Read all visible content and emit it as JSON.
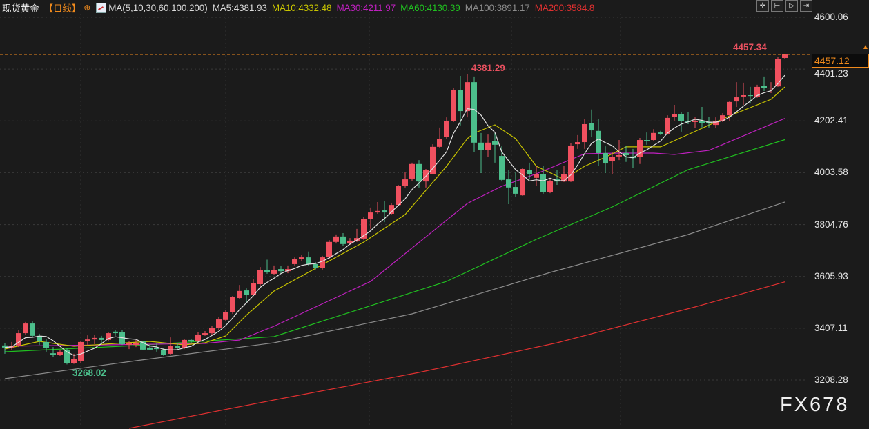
{
  "header": {
    "symbol": "现货黄金",
    "period": "【日线】",
    "ma_params": "MA(5,10,30,60,100,200)",
    "ma5": "MA5:4381.93",
    "ma10": "MA10:4332.48",
    "ma30": "MA30:4211.97",
    "ma60": "MA60:4130.39",
    "ma100": "MA100:3891.17",
    "ma200": "MA200:3584.8"
  },
  "toolbar": {
    "icons": [
      "crosshair-icon",
      "zoom-range-icon",
      "play-icon",
      "move-right-icon"
    ]
  },
  "watermark": "FX678",
  "colors": {
    "background": "#1b1b1b",
    "up": "#f0505f",
    "down": "#4cbf8c",
    "ma5": "#e0e0e0",
    "ma10": "#c8c400",
    "ma30": "#c020c0",
    "ma60": "#20c020",
    "ma100": "#8c8c8c",
    "ma200": "#e03030",
    "last_price": "#f08a1c"
  },
  "chart_data": {
    "type": "candlestick",
    "title": "现货黄金【日线】",
    "ylim": [
      3208.28,
      4600.06
    ],
    "y_ticks": [
      "4600.06",
      "4401.23",
      "4202.41",
      "4003.58",
      "3804.76",
      "3605.93",
      "3407.11",
      "3208.28"
    ],
    "grid": true,
    "last_price": "4457.12",
    "annotations": {
      "high": "4381.29",
      "low": "3268.02",
      "recent_high": "4457.34"
    },
    "candles_ohlc": [
      [
        3341,
        3349,
        3309,
        3333
      ],
      [
        3333,
        3354,
        3322,
        3338
      ],
      [
        3341,
        3399,
        3335,
        3388
      ],
      [
        3388,
        3431,
        3383,
        3425
      ],
      [
        3425,
        3433,
        3372,
        3378
      ],
      [
        3378,
        3386,
        3343,
        3356
      ],
      [
        3354,
        3364,
        3317,
        3330
      ],
      [
        3311,
        3335,
        3296,
        3306
      ],
      [
        3306,
        3322,
        3301,
        3317
      ],
      [
        3322,
        3330,
        3268.02,
        3274
      ],
      [
        3274,
        3309,
        3270,
        3290
      ],
      [
        3282,
        3359,
        3274,
        3354
      ],
      [
        3359,
        3380,
        3343,
        3364
      ],
      [
        3364,
        3383,
        3346,
        3370
      ],
      [
        3370,
        3378,
        3351,
        3362
      ],
      [
        3362,
        3391,
        3356,
        3388
      ],
      [
        3394,
        3401,
        3378,
        3388
      ],
      [
        3391,
        3399,
        3343,
        3346
      ],
      [
        3343,
        3359,
        3327,
        3349
      ],
      [
        3343,
        3362,
        3335,
        3351
      ],
      [
        3356,
        3359,
        3322,
        3325
      ],
      [
        3333,
        3341,
        3322,
        3325
      ],
      [
        3333,
        3349,
        3317,
        3327
      ],
      [
        3325,
        3330,
        3301,
        3304
      ],
      [
        3309,
        3372,
        3306,
        3338
      ],
      [
        3338,
        3349,
        3325,
        3330
      ],
      [
        3330,
        3367,
        3327,
        3362
      ],
      [
        3362,
        3367,
        3351,
        3356
      ],
      [
        3356,
        3391,
        3351,
        3383
      ],
      [
        3383,
        3396,
        3378,
        3388
      ],
      [
        3388,
        3417,
        3383,
        3407
      ],
      [
        3407,
        3449,
        3401,
        3441
      ],
      [
        3439,
        3478,
        3433,
        3468
      ],
      [
        3468,
        3531,
        3462,
        3526
      ],
      [
        3523,
        3573,
        3518,
        3550
      ],
      [
        3552,
        3560,
        3507,
        3536
      ],
      [
        3536,
        3595,
        3531,
        3579
      ],
      [
        3576,
        3642,
        3571,
        3629
      ],
      [
        3629,
        3670,
        3616,
        3621
      ],
      [
        3616,
        3648,
        3611,
        3629
      ],
      [
        3634,
        3645,
        3616,
        3626
      ],
      [
        3626,
        3648,
        3618,
        3634
      ],
      [
        3653,
        3679,
        3648,
        3672
      ],
      [
        3672,
        3690,
        3666,
        3679
      ],
      [
        3679,
        3701,
        3645,
        3653
      ],
      [
        3653,
        3661,
        3632,
        3637
      ],
      [
        3637,
        3685,
        3632,
        3679
      ],
      [
        3679,
        3745,
        3674,
        3738
      ],
      [
        3738,
        3767,
        3732,
        3759
      ],
      [
        3759,
        3772,
        3722,
        3730
      ],
      [
        3732,
        3753,
        3727,
        3743
      ],
      [
        3743,
        3788,
        3738,
        3753
      ],
      [
        3751,
        3833,
        3745,
        3827
      ],
      [
        3825,
        3870,
        3788,
        3851
      ],
      [
        3851,
        3891,
        3846,
        3857
      ],
      [
        3859,
        3894,
        3814,
        3851
      ],
      [
        3846,
        3888,
        3841,
        3880
      ],
      [
        3880,
        3957,
        3878,
        3952
      ],
      [
        3954,
        4005,
        3947,
        3978
      ],
      [
        3981,
        4042,
        3973,
        4037
      ],
      [
        4037,
        4052,
        3947,
        3970
      ],
      [
        3970,
        4018,
        3947,
        4013
      ],
      [
        3999,
        4113,
        3997,
        4103
      ],
      [
        4103,
        4177,
        4100,
        4134
      ],
      [
        4140,
        4216,
        4134,
        4201
      ],
      [
        4203,
        4330,
        4198,
        4320
      ],
      [
        4322,
        4375,
        4185,
        4240
      ],
      [
        4240,
        4381.29,
        4216,
        4351
      ],
      [
        4351,
        4373,
        4082,
        4119
      ],
      [
        4119,
        4156,
        4002,
        4092
      ],
      [
        4092,
        4150,
        4063,
        4119
      ],
      [
        4124,
        4156,
        4042,
        4111
      ],
      [
        4068,
        4105,
        3970,
        3976
      ],
      [
        3978,
        4015,
        3883,
        3947
      ],
      [
        3949,
        4007,
        3912,
        3923
      ],
      [
        3917,
        4021,
        3915,
        4018
      ],
      [
        4015,
        4042,
        3978,
        3997
      ],
      [
        3984,
        4029,
        3952,
        3997
      ],
      [
        3997,
        4031,
        3923,
        3928
      ],
      [
        3928,
        3978,
        3925,
        3973
      ],
      [
        3978,
        4013,
        3957,
        3970
      ],
      [
        3970,
        4031,
        3968,
        3997
      ],
      [
        3970,
        4116,
        3968,
        4108
      ],
      [
        4113,
        4148,
        4095,
        4121
      ],
      [
        4121,
        4211,
        4095,
        4190
      ],
      [
        4193,
        4246,
        4142,
        4166
      ],
      [
        4164,
        4209,
        4031,
        4079
      ],
      [
        4079,
        4105,
        4002,
        4039
      ],
      [
        4047,
        4084,
        3997,
        4063
      ],
      [
        4066,
        4129,
        4052,
        4071
      ],
      [
        4079,
        4108,
        4045,
        4071
      ],
      [
        4066,
        4095,
        4021,
        4060
      ],
      [
        4063,
        4137,
        4037,
        4129
      ],
      [
        4129,
        4158,
        4111,
        4126
      ],
      [
        4129,
        4171,
        4126,
        4156
      ],
      [
        4158,
        4164,
        4148,
        4153
      ],
      [
        4153,
        4224,
        4150,
        4214
      ],
      [
        4219,
        4264,
        4203,
        4227
      ],
      [
        4227,
        4235,
        4161,
        4201
      ],
      [
        4201,
        4235,
        4190,
        4198
      ],
      [
        4198,
        4216,
        4174,
        4203
      ],
      [
        4203,
        4256,
        4177,
        4193
      ],
      [
        4198,
        4219,
        4177,
        4193
      ],
      [
        4187,
        4216,
        4174,
        4201
      ],
      [
        4201,
        4232,
        4198,
        4224
      ],
      [
        4224,
        4280,
        4203,
        4275
      ],
      [
        4277,
        4351,
        4256,
        4293
      ],
      [
        4296,
        4349,
        4264,
        4301
      ],
      [
        4301,
        4333,
        4269,
        4298
      ],
      [
        4296,
        4341,
        4291,
        4333
      ],
      [
        4338,
        4373,
        4317,
        4328
      ],
      [
        4328,
        4351,
        4309,
        4330
      ],
      [
        4335,
        4447,
        4333,
        4439
      ],
      [
        4444,
        4457.34,
        4441,
        4457.12
      ]
    ],
    "moving_averages": {
      "ma10": [
        [
          0,
          3327.3
        ],
        [
          5,
          3356.4
        ],
        [
          10,
          3337.9
        ],
        [
          16,
          3348.5
        ],
        [
          21,
          3356.4
        ],
        [
          26,
          3343.2
        ],
        [
          29,
          3351.1
        ],
        [
          32,
          3377.6
        ],
        [
          35,
          3457.0
        ],
        [
          39,
          3549.6
        ],
        [
          52,
          3737.5
        ],
        [
          58,
          3843.4
        ],
        [
          64,
          4028.6
        ],
        [
          67,
          4134.3
        ],
        [
          68,
          4155.5
        ],
        [
          71,
          4187.3
        ],
        [
          74,
          4134.3
        ],
        [
          77,
          4028.6
        ],
        [
          81,
          3978.2
        ],
        [
          84,
          4028.6
        ],
        [
          87,
          4063.1
        ],
        [
          90,
          4102.8
        ],
        [
          95,
          4102.8
        ],
        [
          99,
          4150.2
        ],
        [
          105,
          4221.7
        ],
        [
          111,
          4285.3
        ],
        [
          113,
          4332.48
        ]
      ],
      "ma30": [
        [
          0,
          3337.9
        ],
        [
          29,
          3348.5
        ],
        [
          34,
          3361.7
        ],
        [
          39,
          3414.6
        ],
        [
          53,
          3586.6
        ],
        [
          67,
          3885.6
        ],
        [
          72,
          3951.8
        ],
        [
          77,
          3999.4
        ],
        [
          84,
          4076.1
        ],
        [
          89,
          4078.8
        ],
        [
          94,
          4078.8
        ],
        [
          97,
          4073.5
        ],
        [
          102,
          4089.4
        ],
        [
          113,
          4211.97
        ]
      ],
      "ma60": [
        [
          0,
          3316.7
        ],
        [
          19,
          3340.6
        ],
        [
          39,
          3374.9
        ],
        [
          64,
          3586.6
        ],
        [
          77,
          3748.0
        ],
        [
          88,
          3872.4
        ],
        [
          99,
          4015.3
        ],
        [
          113,
          4130.39
        ]
      ],
      "ma100": [
        [
          0,
          3213.5
        ],
        [
          19,
          3282.3
        ],
        [
          39,
          3351.1
        ],
        [
          59,
          3462.3
        ],
        [
          79,
          3621.1
        ],
        [
          99,
          3766.6
        ],
        [
          113,
          3891.17
        ]
      ],
      "ma200": [
        [
          0,
          2919.8
        ],
        [
          18,
          3023.0
        ],
        [
          40,
          3136.8
        ],
        [
          60,
          3237.4
        ],
        [
          80,
          3351.1
        ],
        [
          100,
          3488.7
        ],
        [
          113,
          3584.8
        ]
      ]
    }
  }
}
